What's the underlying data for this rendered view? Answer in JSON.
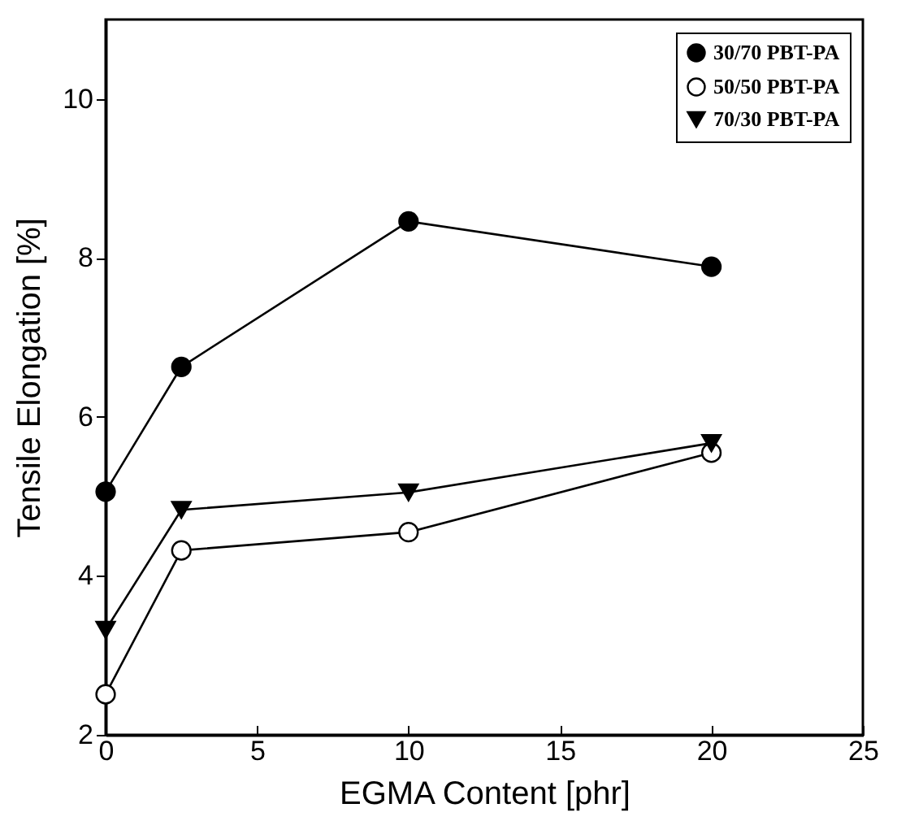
{
  "chart_data": {
    "type": "line",
    "xlabel": "EGMA Content [phr]",
    "ylabel": "Tensile Elongation [%]",
    "x": [
      0,
      2.5,
      10,
      20
    ],
    "series": [
      {
        "name": "30/70 PBT-PA",
        "color": "#000000",
        "marker": "circle",
        "values": [
          5.06,
          6.63,
          8.46,
          7.89
        ]
      },
      {
        "name": "50/50 PBT-PA",
        "color": "#000000",
        "marker": "circle-open",
        "values": [
          2.51,
          4.32,
          4.55,
          5.55
        ]
      },
      {
        "name": "70/30 PBT-PA",
        "color": "#000000",
        "marker": "triangle",
        "values": [
          3.32,
          4.83,
          5.05,
          5.67
        ]
      }
    ],
    "xlim": [
      0,
      25
    ],
    "xticks": [
      0,
      5,
      10,
      15,
      20,
      25
    ],
    "ylim": [
      2,
      11
    ],
    "yticks": [
      2,
      4,
      6,
      8,
      10
    ],
    "grid": false,
    "legend": "top right",
    "line_style": "solid"
  }
}
